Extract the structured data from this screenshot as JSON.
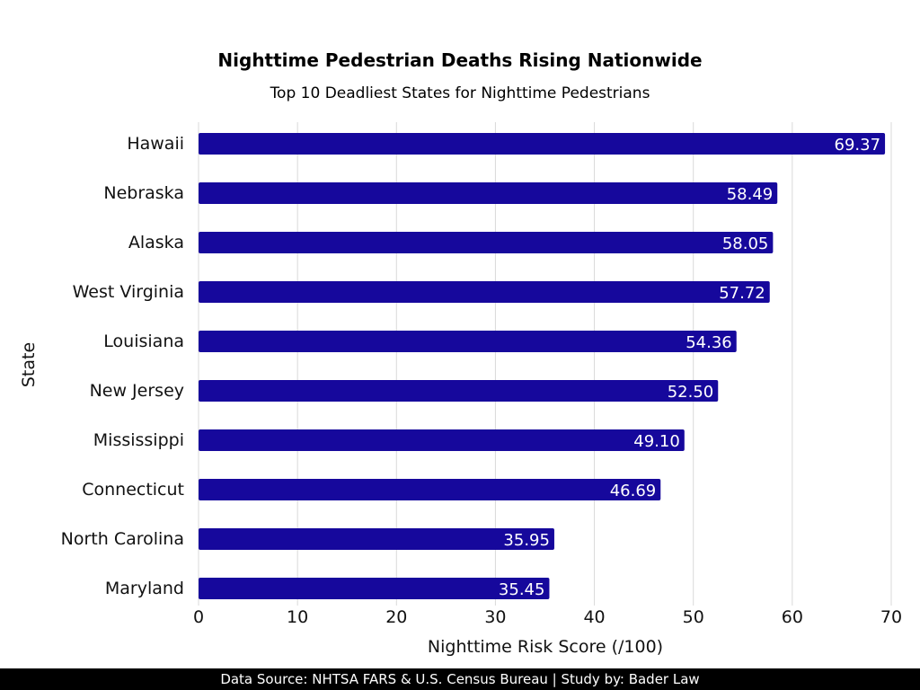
{
  "chart_data": {
    "type": "bar",
    "orientation": "horizontal",
    "title": "Nighttime Pedestrian Deaths Rising Nationwide",
    "subtitle": "Top 10 Deadliest States for Nighttime Pedestrians",
    "xlabel": "Nighttime Risk Score (/100)",
    "ylabel": "State",
    "categories": [
      "Hawaii",
      "Nebraska",
      "Alaska",
      "West Virginia",
      "Louisiana",
      "New Jersey",
      "Mississippi",
      "Connecticut",
      "North Carolina",
      "Maryland"
    ],
    "values": [
      69.37,
      58.49,
      58.05,
      57.72,
      54.36,
      52.5,
      49.1,
      46.69,
      35.95,
      35.45
    ],
    "value_labels": [
      "69.37",
      "58.49",
      "58.05",
      "57.72",
      "54.36",
      "52.50",
      "49.10",
      "46.69",
      "35.95",
      "35.45"
    ],
    "xlim": [
      0,
      70
    ],
    "xticks": [
      0,
      10,
      20,
      30,
      40,
      50,
      60,
      70
    ],
    "grid": "vertical",
    "bar_color": "#16089c",
    "grid_color": "#d9d9d9"
  },
  "footer": {
    "text": "Data Source: NHTSA FARS & U.S. Census Bureau | Study by: Bader Law"
  }
}
